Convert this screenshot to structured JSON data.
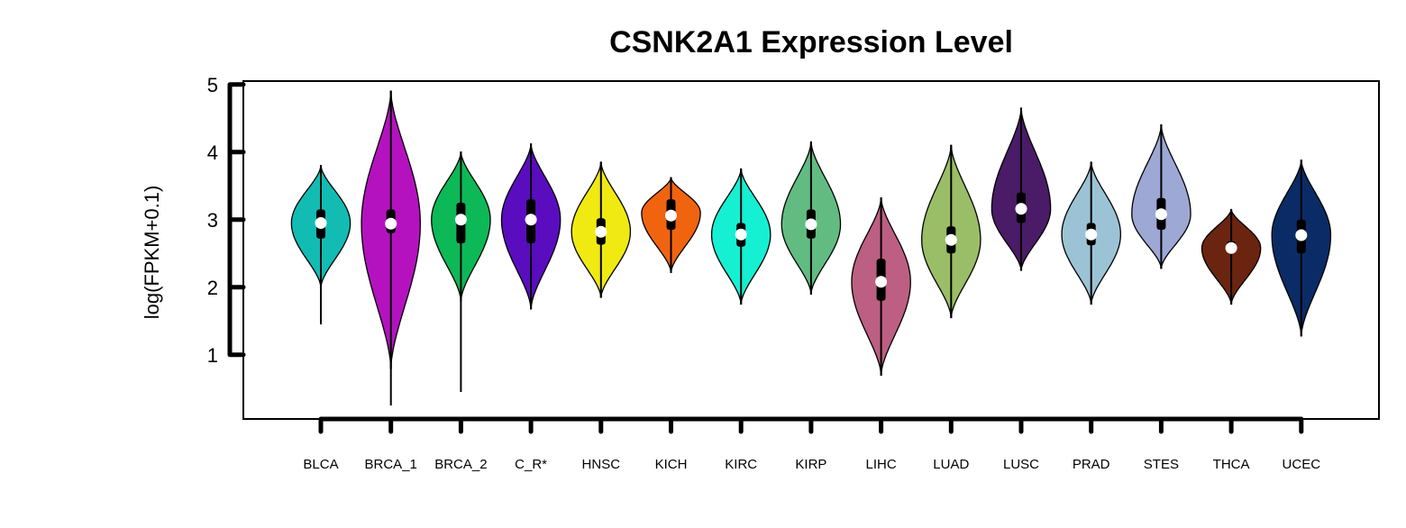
{
  "chart_data": {
    "type": "violin",
    "title": "CSNK2A1 Expression Level",
    "xlabel": "",
    "ylabel": "log(FPKM+0.1)",
    "ylim": [
      0.05,
      5.05
    ],
    "yticks": [
      1,
      2,
      3,
      4,
      5
    ],
    "categories": [
      "BLCA",
      "BRCA_1",
      "BRCA_2",
      "C_R*",
      "HNSC",
      "KICH",
      "KIRC",
      "KIRP",
      "LIHC",
      "LUAD",
      "LUSC",
      "PRAD",
      "STES",
      "THCA",
      "UCEC"
    ],
    "series": [
      {
        "min": 1.45,
        "q1": 2.72,
        "median": 2.95,
        "q3": 3.15,
        "max": 3.8,
        "vmin": 2.0,
        "vmax": 3.8,
        "peak": 2.95,
        "halfwidth": 0.42,
        "color": "#12bcb3"
      },
      {
        "min": 0.25,
        "q1": 2.8,
        "median": 2.94,
        "q3": 3.15,
        "max": 4.9,
        "vmin": 0.8,
        "vmax": 4.9,
        "peak": 2.94,
        "halfwidth": 0.42,
        "color": "#b512bf"
      },
      {
        "min": 0.45,
        "q1": 2.65,
        "median": 3.0,
        "q3": 3.25,
        "max": 4.0,
        "vmin": 1.8,
        "vmax": 4.0,
        "peak": 3.0,
        "halfwidth": 0.42,
        "color": "#0db857"
      },
      {
        "min": 1.68,
        "q1": 2.65,
        "median": 3.0,
        "q3": 3.3,
        "max": 4.12,
        "vmin": 1.68,
        "vmax": 4.12,
        "peak": 3.0,
        "halfwidth": 0.42,
        "color": "#5a0dbf"
      },
      {
        "min": 1.85,
        "q1": 2.63,
        "median": 2.82,
        "q3": 3.02,
        "max": 3.85,
        "vmin": 1.85,
        "vmax": 3.85,
        "peak": 2.82,
        "halfwidth": 0.42,
        "color": "#f0ea12"
      },
      {
        "min": 2.22,
        "q1": 2.85,
        "median": 3.06,
        "q3": 3.3,
        "max": 3.62,
        "vmin": 2.22,
        "vmax": 3.62,
        "peak": 3.1,
        "halfwidth": 0.42,
        "color": "#f06410"
      },
      {
        "min": 1.75,
        "q1": 2.6,
        "median": 2.78,
        "q3": 2.95,
        "max": 3.75,
        "vmin": 1.75,
        "vmax": 3.75,
        "peak": 2.78,
        "halfwidth": 0.42,
        "color": "#15f0d2"
      },
      {
        "min": 1.9,
        "q1": 2.72,
        "median": 2.93,
        "q3": 3.15,
        "max": 4.15,
        "vmin": 1.9,
        "vmax": 4.15,
        "peak": 2.93,
        "halfwidth": 0.42,
        "color": "#62bc82"
      },
      {
        "min": 0.7,
        "q1": 1.8,
        "median": 2.08,
        "q3": 2.42,
        "max": 3.32,
        "vmin": 0.7,
        "vmax": 3.32,
        "peak": 2.08,
        "halfwidth": 0.42,
        "color": "#bc5f82"
      },
      {
        "min": 1.55,
        "q1": 2.5,
        "median": 2.7,
        "q3": 2.9,
        "max": 4.1,
        "vmin": 1.55,
        "vmax": 4.1,
        "peak": 2.7,
        "halfwidth": 0.42,
        "color": "#9abd67"
      },
      {
        "min": 2.25,
        "q1": 2.95,
        "median": 3.16,
        "q3": 3.4,
        "max": 4.65,
        "vmin": 2.25,
        "vmax": 4.65,
        "peak": 3.16,
        "halfwidth": 0.42,
        "color": "#4a1b66"
      },
      {
        "min": 1.75,
        "q1": 2.62,
        "median": 2.78,
        "q3": 2.95,
        "max": 3.85,
        "vmin": 1.75,
        "vmax": 3.85,
        "peak": 2.78,
        "halfwidth": 0.42,
        "color": "#9cc3d5"
      },
      {
        "min": 2.28,
        "q1": 2.85,
        "median": 3.08,
        "q3": 3.32,
        "max": 4.4,
        "vmin": 2.28,
        "vmax": 4.4,
        "peak": 3.08,
        "halfwidth": 0.42,
        "color": "#9ea8d5"
      },
      {
        "min": 1.75,
        "q1": 2.5,
        "median": 2.58,
        "q3": 2.68,
        "max": 3.15,
        "vmin": 1.75,
        "vmax": 3.15,
        "peak": 2.58,
        "halfwidth": 0.42,
        "color": "#6b2410"
      },
      {
        "min": 1.28,
        "q1": 2.5,
        "median": 2.77,
        "q3": 3.0,
        "max": 3.88,
        "vmin": 1.28,
        "vmax": 3.88,
        "peak": 2.77,
        "halfwidth": 0.42,
        "color": "#0b2b66"
      }
    ]
  }
}
